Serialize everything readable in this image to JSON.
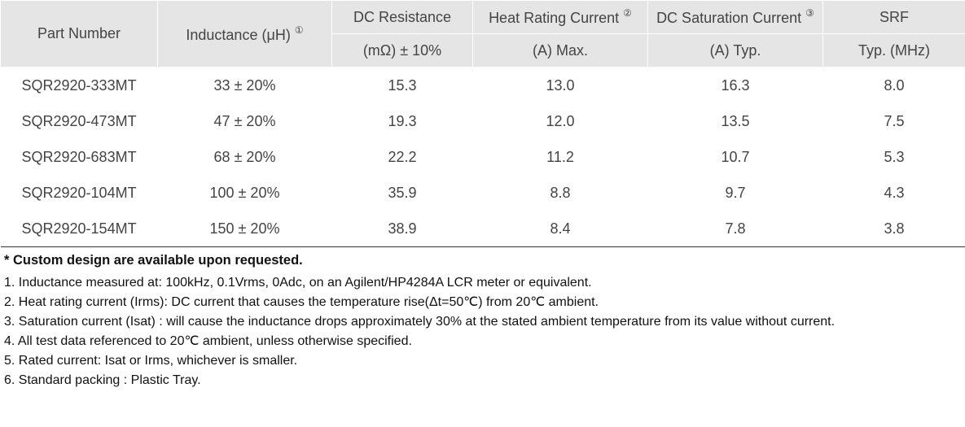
{
  "table": {
    "header": [
      {
        "title": "Part Number"
      },
      {
        "title": "Inductance (μH)",
        "note": "①"
      },
      {
        "title": "DC Resistance",
        "sub": "(mΩ)  ± 10%"
      },
      {
        "title": "Heat Rating Current",
        "note": "②",
        "sub": "(A)   Max."
      },
      {
        "title": "DC Saturation Current",
        "note": "③",
        "sub": "(A)   Typ."
      },
      {
        "title": "SRF",
        "sub": "Typ. (MHz)"
      }
    ],
    "rows": [
      [
        "SQR2920-333MT",
        "33 ± 20%",
        "15.3",
        "13.0",
        "16.3",
        "8.0"
      ],
      [
        "SQR2920-473MT",
        "47 ± 20%",
        "19.3",
        "12.0",
        "13.5",
        "7.5"
      ],
      [
        "SQR2920-683MT",
        "68 ± 20%",
        "22.2",
        "11.2",
        "10.7",
        "5.3"
      ],
      [
        "SQR2920-104MT",
        "100 ± 20%",
        "35.9",
        "8.8",
        "9.7",
        "4.3"
      ],
      [
        "SQR2920-154MT",
        "150 ± 20%",
        "38.9",
        "8.4",
        "7.8",
        "3.8"
      ]
    ]
  },
  "notes": {
    "highlight": "* Custom design are available upon requested.",
    "items": [
      "1. Inductance measured at: 100kHz, 0.1Vrms, 0Adc, on an Agilent/HP4284A LCR meter or equivalent.",
      "2. Heat rating current (Irms): DC current that causes the temperature rise(Δt=50℃) from 20℃ ambient.",
      "3. Saturation current (Isat) : will cause the inductance drops approximately 30% at the stated ambient temperature from its value without current.",
      "4. All test data referenced to 20℃ ambient, unless otherwise specified.",
      "5. Rated current: Isat or Irms, whichever is smaller.",
      "6. Standard packing : Plastic Tray."
    ]
  }
}
